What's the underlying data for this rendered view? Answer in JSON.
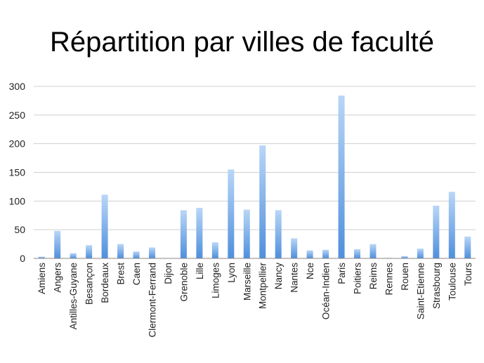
{
  "chart_data": {
    "type": "bar",
    "title": "Répartition par villes de faculté",
    "xlabel": "",
    "ylabel": "",
    "ylim": [
      0,
      300
    ],
    "yticks": [
      0,
      50,
      100,
      150,
      200,
      250,
      300
    ],
    "grid": true,
    "categories": [
      "Amiens",
      "Angers",
      "Antilles-Guyane",
      "Besançon",
      "Bordeaux",
      "Brest",
      "Caen",
      "Clermont-Ferrand",
      "Dijon",
      "Grenoble",
      "Lille",
      "Limoges",
      "Lyon",
      "Marseille",
      "Montpellier",
      "Nancy",
      "Nantes",
      "Nce",
      "Océan-Indien",
      "Paris",
      "Poitiers",
      "Reims",
      "Rennes",
      "Rouen",
      "Saint-Etienne",
      "Strasbourg",
      "Toulouse",
      "Tours"
    ],
    "values": [
      3,
      48,
      9,
      23,
      111,
      25,
      12,
      19,
      0,
      84,
      88,
      28,
      155,
      85,
      197,
      84,
      35,
      14,
      15,
      284,
      16,
      25,
      1,
      4,
      17,
      92,
      116,
      38
    ],
    "bar_color_top": "#b9d6f7",
    "bar_color_bottom": "#4f8fdc"
  }
}
